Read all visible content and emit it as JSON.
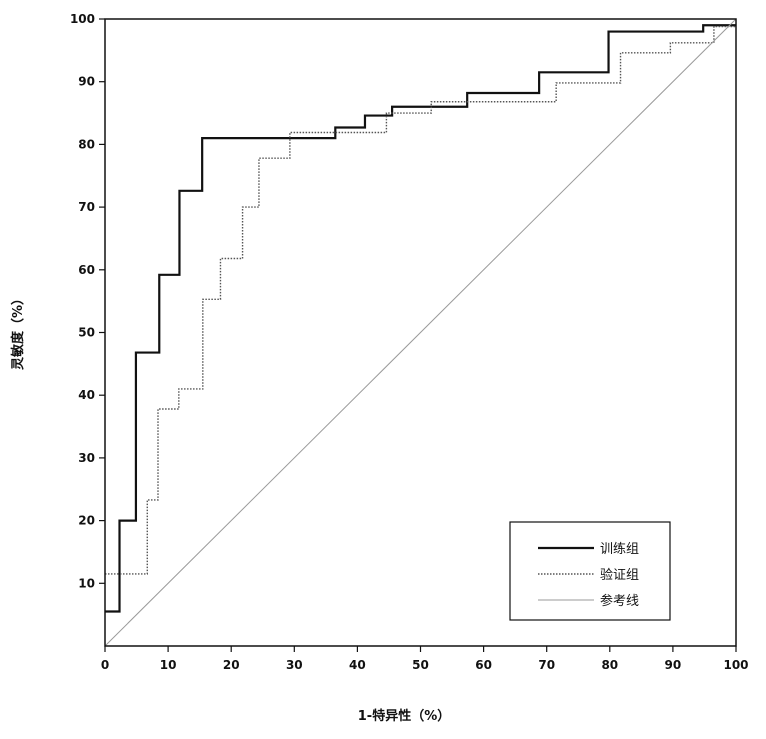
{
  "chart_data": {
    "type": "line",
    "title": "",
    "xlabel": "1-特异性（%）",
    "ylabel": "灵敏度（%）",
    "xlim": [
      0,
      100
    ],
    "ylim": [
      0,
      100
    ],
    "x_ticks": [
      "0",
      "10",
      "20",
      "30",
      "40",
      "50",
      "60",
      "70",
      "80",
      "90",
      "100"
    ],
    "y_ticks": [
      "10",
      "20",
      "30",
      "40",
      "50",
      "60",
      "70",
      "80",
      "90",
      "100"
    ],
    "grid": false,
    "legend_position": "bottom-right",
    "series": [
      {
        "name": "训练组",
        "style": "solid",
        "color": "#111111",
        "points": [
          [
            0,
            5.5
          ],
          [
            2.3,
            5.5
          ],
          [
            2.3,
            20
          ],
          [
            4.9,
            20
          ],
          [
            4.9,
            46.8
          ],
          [
            8.6,
            46.8
          ],
          [
            8.6,
            59.2
          ],
          [
            11.8,
            59.2
          ],
          [
            11.8,
            72.6
          ],
          [
            15.4,
            72.6
          ],
          [
            15.4,
            81
          ],
          [
            36.5,
            81
          ],
          [
            36.5,
            82.7
          ],
          [
            41.2,
            82.7
          ],
          [
            41.2,
            84.6
          ],
          [
            45.5,
            84.6
          ],
          [
            45.5,
            86
          ],
          [
            57.4,
            86
          ],
          [
            57.4,
            88.2
          ],
          [
            68.8,
            88.2
          ],
          [
            68.8,
            91.5
          ],
          [
            79.8,
            91.5
          ],
          [
            79.8,
            98
          ],
          [
            94.8,
            98
          ],
          [
            94.8,
            99
          ],
          [
            100,
            99
          ]
        ]
      },
      {
        "name": "验证组",
        "style": "dotted",
        "color": "#555555",
        "points": [
          [
            0,
            11.5
          ],
          [
            6.7,
            11.5
          ],
          [
            6.7,
            23.3
          ],
          [
            8.4,
            23.3
          ],
          [
            8.4,
            37.8
          ],
          [
            11.7,
            37.8
          ],
          [
            11.7,
            41
          ],
          [
            15.5,
            41
          ],
          [
            15.5,
            55.3
          ],
          [
            18.3,
            55.3
          ],
          [
            18.3,
            61.8
          ],
          [
            21.8,
            61.8
          ],
          [
            21.8,
            70
          ],
          [
            24.4,
            70
          ],
          [
            24.4,
            77.8
          ],
          [
            29.3,
            77.8
          ],
          [
            29.3,
            81.9
          ],
          [
            44.6,
            81.9
          ],
          [
            44.6,
            85
          ],
          [
            51.7,
            85
          ],
          [
            51.7,
            86.8
          ],
          [
            71.5,
            86.8
          ],
          [
            71.5,
            89.8
          ],
          [
            81.7,
            89.8
          ],
          [
            81.7,
            94.6
          ],
          [
            89.6,
            94.6
          ],
          [
            89.6,
            96.2
          ],
          [
            96.5,
            96.2
          ],
          [
            96.5,
            98.8
          ],
          [
            100,
            98.8
          ]
        ]
      },
      {
        "name": "参考线",
        "style": "thin",
        "color": "#9a9a9a",
        "points": [
          [
            0,
            0
          ],
          [
            100,
            100
          ]
        ]
      }
    ]
  }
}
